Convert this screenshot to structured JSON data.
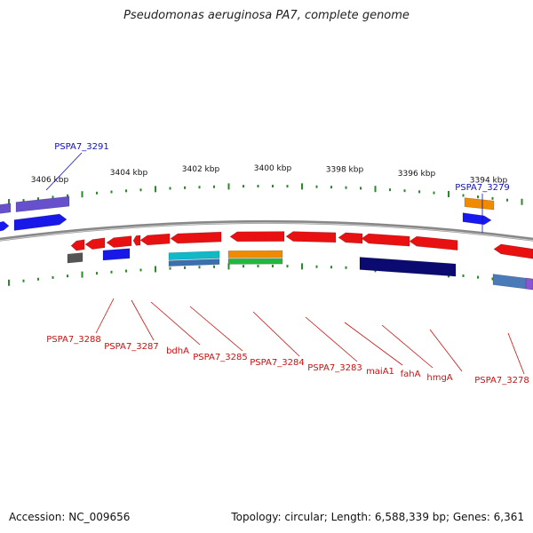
{
  "title": "Pseudomonas aeruginosa PA7, complete genome",
  "footer": {
    "accession": "Accession: NC_009656",
    "topology": "Topology: circular; Length: 6,588,339 bp; Genes: 6,361"
  },
  "ticks": [
    "3406 kbp",
    "3404 kbp",
    "3402 kbp",
    "3400 kbp",
    "3398 kbp",
    "3396 kbp",
    "3394 kbp"
  ],
  "labels_top": [
    "PSPA7_3291",
    "PSPA7_3279"
  ],
  "labels_bottom": [
    "PSPA7_3288",
    "PSPA7_3287",
    "bdhA",
    "PSPA7_3285",
    "PSPA7_3284",
    "PSPA7_3283",
    "maiA1",
    "fahA",
    "hmgA",
    "PSPA7_3278"
  ],
  "colors": {
    "forward_gene": "#1010e0",
    "reverse_gene": "#e01010",
    "backbone": "#888888",
    "tick": "#2a8a2a",
    "top_label": "#1010c0",
    "bottom_label": "#cc1010"
  }
}
